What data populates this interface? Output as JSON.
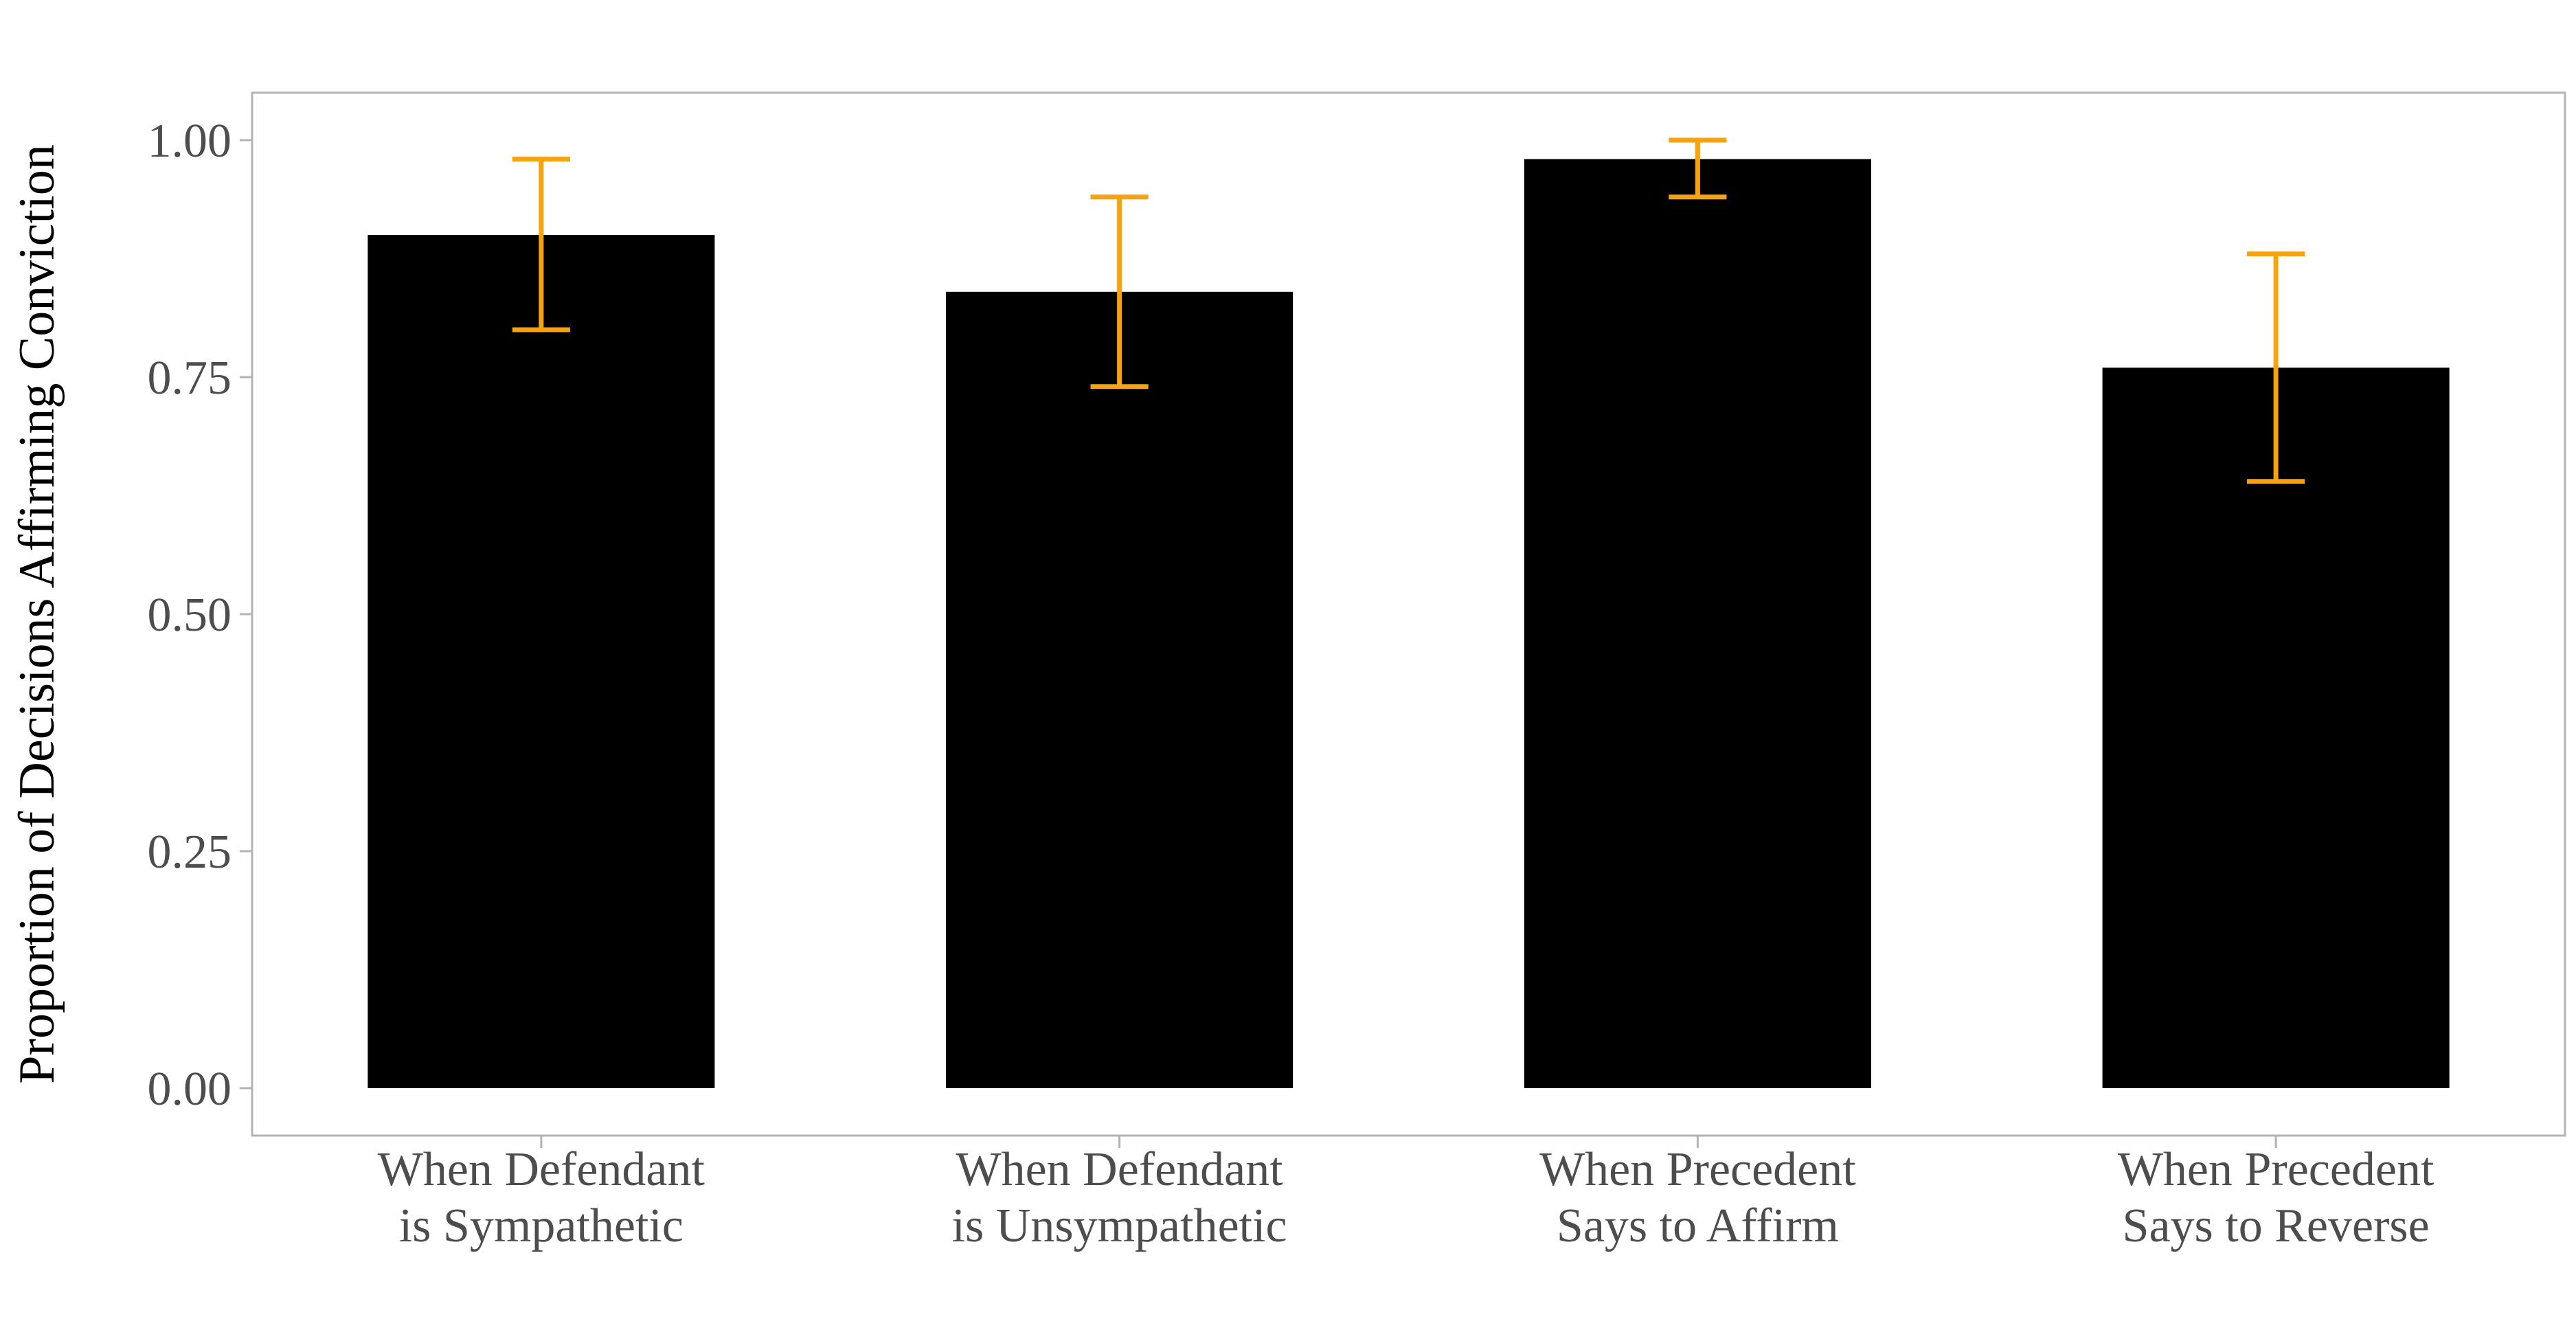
{
  "chart_data": {
    "type": "bar",
    "title": "",
    "xlabel": "",
    "ylabel": "Proportion of Decisions Affirming Conviction",
    "categories": [
      [
        "When Defendant",
        "is Sympathetic"
      ],
      [
        "When Defendant",
        "is Unsympathetic"
      ],
      [
        "When Precedent",
        "Says to Affirm"
      ],
      [
        "When Precedent",
        "Says to Reverse"
      ]
    ],
    "values": [
      0.9,
      0.84,
      0.98,
      0.76
    ],
    "error_low": [
      0.8,
      0.74,
      0.94,
      0.64
    ],
    "error_high": [
      0.98,
      0.94,
      1.0,
      0.88
    ],
    "yticks": [
      "0.00",
      "0.25",
      "0.50",
      "0.75",
      "1.00"
    ],
    "ylim": [
      -0.05,
      1.05
    ],
    "grid": false,
    "legend": "none",
    "colors": {
      "bar": "#000000",
      "error_bar": "#f5a311",
      "panel_border": "#b3b3b3",
      "tick": "#b3b3b3",
      "text": "#4d4d4d"
    }
  }
}
